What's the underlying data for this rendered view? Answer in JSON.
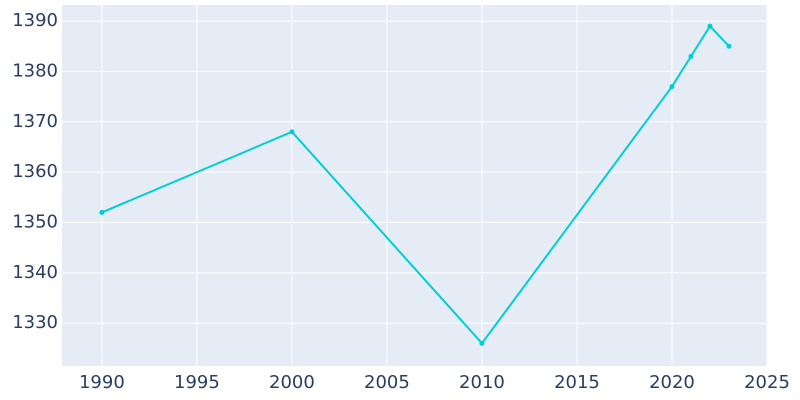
{
  "chart_data": {
    "type": "line",
    "x": [
      1990,
      2000,
      2010,
      2020,
      2021,
      2022,
      2023
    ],
    "series": [
      {
        "color": "#00ced1",
        "values": [
          1352,
          1368,
          1326,
          1377,
          1383,
          1389,
          1385
        ]
      }
    ],
    "xlim": [
      1987.9,
      2025
    ],
    "xticks": [
      1990,
      1995,
      2000,
      2005,
      2010,
      2015,
      2020,
      2025
    ],
    "ylim": [
      1321.5,
      1393.2
    ],
    "yticks": [
      1330,
      1340,
      1350,
      1360,
      1370,
      1380,
      1390
    ],
    "grid": true
  }
}
